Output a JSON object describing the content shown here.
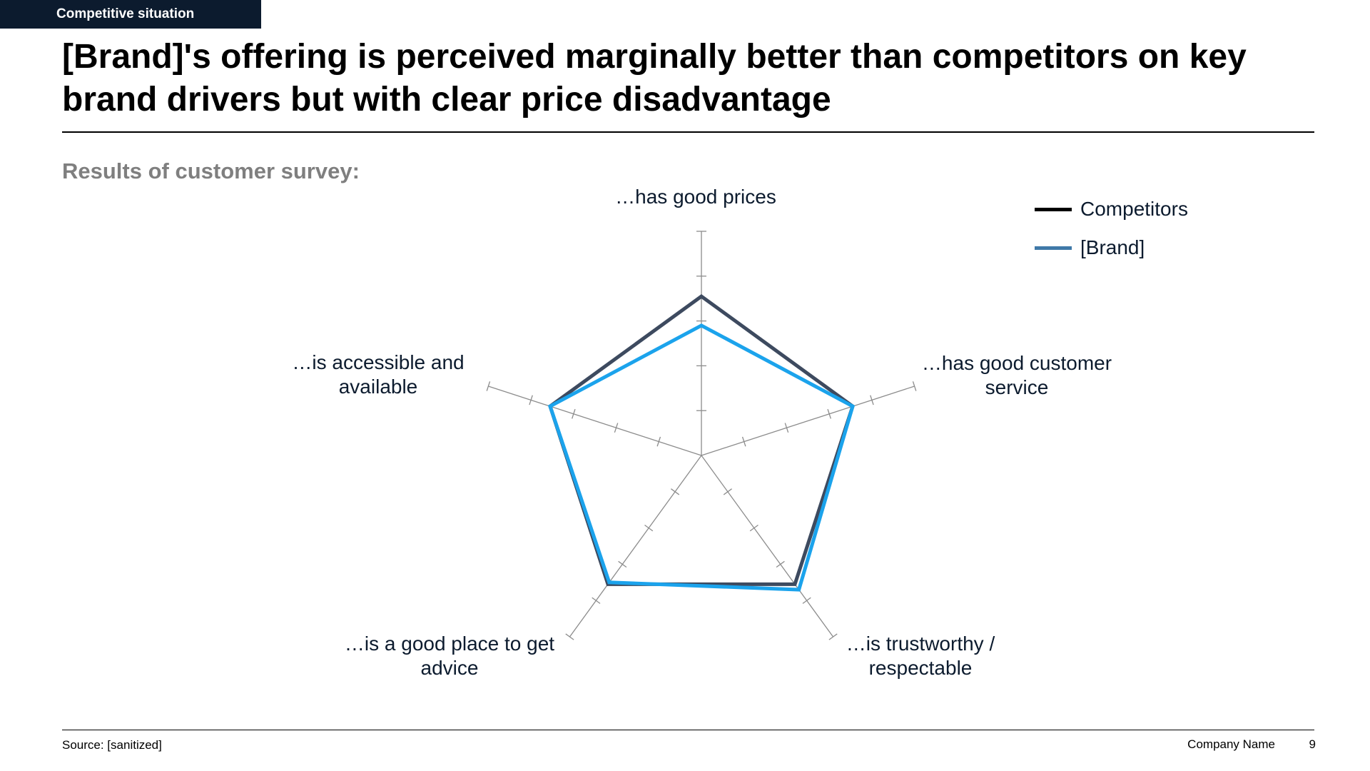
{
  "header": {
    "section_tag": "Competitive situation",
    "title": "[Brand]'s offering is perceived marginally better than competitors on key brand drivers but with clear price disadvantage",
    "subtitle": "Results of customer survey:"
  },
  "footer": {
    "source": "Source: [sanitized]",
    "company": "Company Name",
    "page": "9"
  },
  "chart_data": {
    "type": "radar",
    "axes": [
      [
        "…has good prices"
      ],
      [
        "…has good customer",
        "service"
      ],
      [
        "…is trustworthy /",
        "respectable"
      ],
      [
        "…is a good place to get",
        "advice"
      ],
      [
        "…is accessible and",
        "available"
      ]
    ],
    "rmax": 5,
    "ticks": 5,
    "series": [
      {
        "name": "Competitors",
        "color": "#3d4a5f",
        "legend_color": "#000000",
        "values": [
          3.55,
          3.55,
          3.55,
          3.55,
          3.55
        ]
      },
      {
        "name": "[Brand]",
        "color": "#1ba3ec",
        "legend_color": "#3f79a8",
        "values": [
          2.9,
          3.55,
          3.7,
          3.5,
          3.55
        ]
      }
    ],
    "legend_position": "top-right"
  }
}
